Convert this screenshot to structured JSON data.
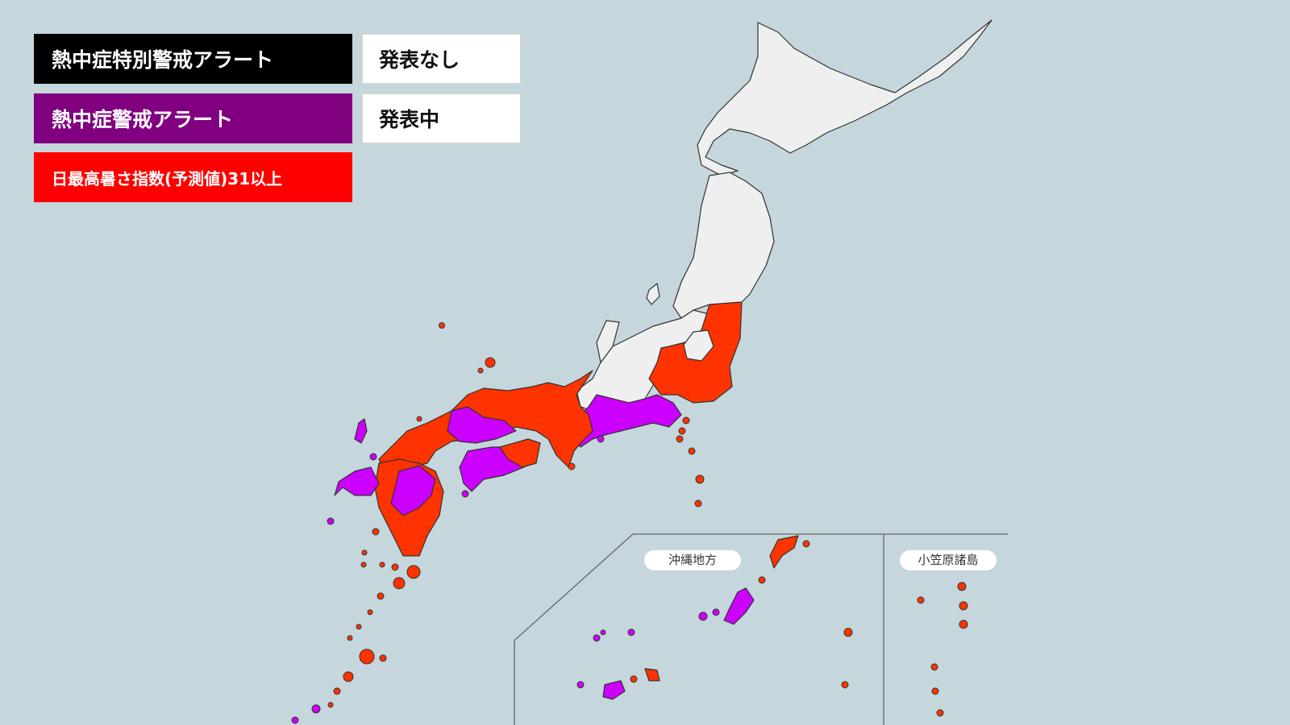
{
  "legend": {
    "special_alert": {
      "label": "熱中症特別警戒アラート",
      "color": "#000000",
      "status": "発表なし"
    },
    "alert": {
      "label": "熱中症警戒アラート",
      "color": "#800080",
      "status": "発表中"
    },
    "wbgt": {
      "label": "日最高暑さ指数(予測値)31以上",
      "color": "#ff0000"
    }
  },
  "insets": {
    "okinawa": "沖縄地方",
    "ogasawara": "小笠原諸島"
  },
  "colors": {
    "sea": "#c5d7dc",
    "no_announcement": "#efefef",
    "alert_fill": "#cc00ff",
    "wbgt_fill": "#ff3300",
    "border": "#333333"
  }
}
